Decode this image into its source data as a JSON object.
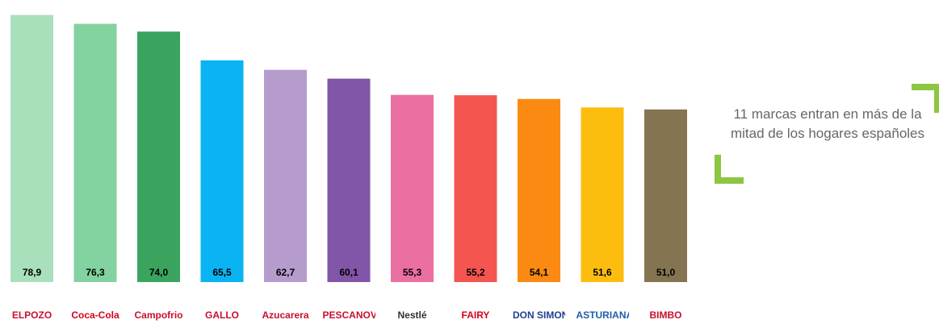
{
  "chart_data": {
    "type": "bar",
    "categories": [
      "ELPOZO",
      "Coca-Cola",
      "Campofrio",
      "GALLO",
      "Azucarera",
      "PESCANOVA",
      "Nestlé",
      "FAIRY",
      "DON SIMON",
      "ASTURIANA",
      "BIMBO"
    ],
    "values": [
      78.9,
      76.3,
      74.0,
      65.5,
      62.7,
      60.1,
      55.3,
      55.2,
      54.1,
      51.6,
      51.0
    ],
    "value_labels": [
      "78,9",
      "76,3",
      "74,0",
      "65,5",
      "62,7",
      "60,1",
      "55,3",
      "55,2",
      "54,1",
      "51,6",
      "51,0"
    ],
    "colors": [
      "#a8e0bb",
      "#82d39f",
      "#3aa45f",
      "#0ab3f1",
      "#b59ccd",
      "#8155a8",
      "#ec6fa2",
      "#f4554f",
      "#fa8a12",
      "#fdbd0f",
      "#857451"
    ],
    "ylim": [
      0,
      80
    ]
  },
  "callout": {
    "text": "11 marcas entran en más de la mitad de los hogares españoles"
  },
  "logos": [
    {
      "text": "ELPOZO",
      "color": "#c8102e"
    },
    {
      "text": "Coca-Cola",
      "color": "#d6001c"
    },
    {
      "text": "Campofrio",
      "color": "#c8102e"
    },
    {
      "text": "GALLO",
      "color": "#c8102e"
    },
    {
      "text": "Azucarera",
      "color": "#c8102e"
    },
    {
      "text": "PESCANOVA",
      "color": "#c8102e"
    },
    {
      "text": "Nestlé",
      "color": "#333333"
    },
    {
      "text": "FAIRY",
      "color": "#d6001c"
    },
    {
      "text": "DON SIMON",
      "color": "#1f3f8f"
    },
    {
      "text": "ASTURIANA",
      "color": "#1f5fa8"
    },
    {
      "text": "BIMBO",
      "color": "#c8102e"
    }
  ]
}
